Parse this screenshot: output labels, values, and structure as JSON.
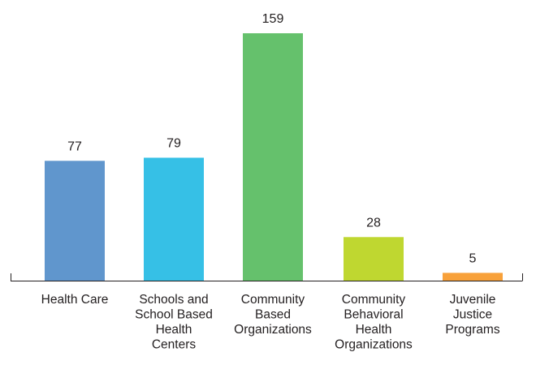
{
  "chart_data": {
    "type": "bar",
    "title": "",
    "xlabel": "",
    "ylabel": "",
    "ylim": [
      0,
      159
    ],
    "grid": false,
    "legend": "none",
    "categories": [
      "Health Care",
      "Schools and School Based Health Centers",
      "Community Based Organizations",
      "Community Behavioral Health Organizations",
      "Juvenile Justice Programs"
    ],
    "category_lines": [
      [
        "Health Care"
      ],
      [
        "Schools and",
        "School Based",
        "Health",
        "Centers"
      ],
      [
        "Community",
        "Based",
        "Organizations"
      ],
      [
        "Community",
        "Behavioral",
        "Health",
        "Organizations"
      ],
      [
        "Juvenile",
        "Justice",
        "Programs"
      ]
    ],
    "values": [
      77,
      79,
      159,
      28,
      5
    ],
    "value_labels": [
      "77",
      "79",
      "159",
      "28",
      "5"
    ],
    "colors": [
      "#6096cd",
      "#36c0e6",
      "#65c16c",
      "#bfd730",
      "#f8a13a"
    ]
  }
}
